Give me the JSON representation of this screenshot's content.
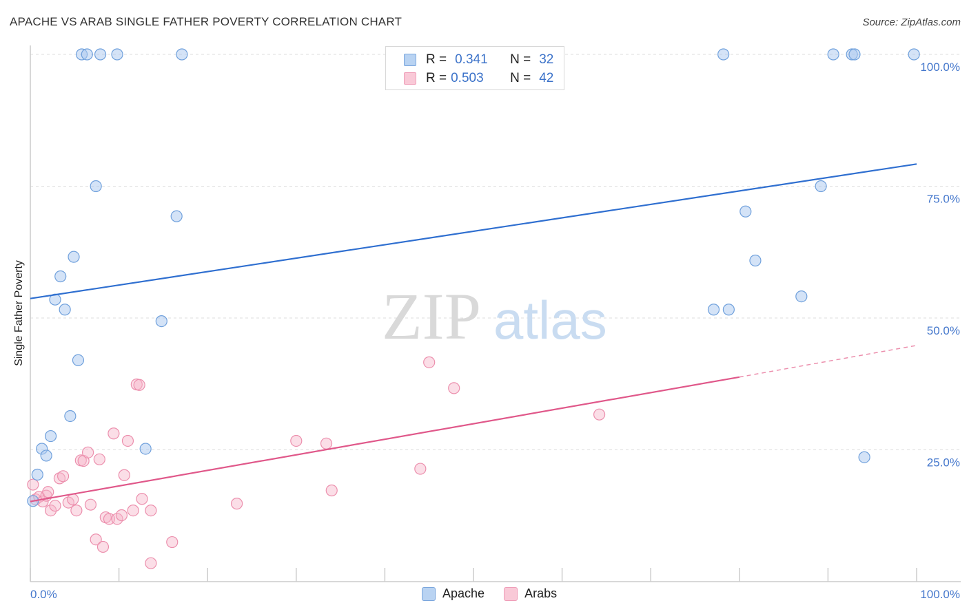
{
  "header": {
    "title": "APACHE VS ARAB SINGLE FATHER POVERTY CORRELATION CHART",
    "source": "Source: ZipAtlas.com"
  },
  "watermark": {
    "zip": "ZIP",
    "atlas": "atlas"
  },
  "legend": {
    "apache": {
      "r_label": "R =",
      "r_value": "0.341",
      "n_label": "N =",
      "n_value": "32"
    },
    "arabs": {
      "r_label": "R =",
      "r_value": "0.503",
      "n_label": "N =",
      "n_value": "42"
    }
  },
  "bottom_legend": {
    "apache": "Apache",
    "arabs": "Arabs"
  },
  "colors": {
    "apache_fill": "#a9c8ef",
    "apache_stroke": "#6fa0dc",
    "apache_line": "#2f6fd0",
    "arabs_fill": "#f6b6c9",
    "arabs_stroke": "#ec8fad",
    "arabs_line": "#e0588a",
    "grid": "#dddddd",
    "axis_text": "#4477cc"
  },
  "chart_data": {
    "type": "scatter",
    "title": "APACHE VS ARAB SINGLE FATHER POVERTY CORRELATION CHART",
    "xlabel": "",
    "ylabel": "Single Father Poverty",
    "xlim": [
      0,
      100
    ],
    "ylim": [
      0,
      100
    ],
    "x_tick_labels": [
      "0.0%",
      "100.0%"
    ],
    "y_ticks": [
      25,
      50,
      75,
      100
    ],
    "y_tick_labels": [
      "25.0%",
      "50.0%",
      "75.0%",
      "100.0%"
    ],
    "series": [
      {
        "name": "Apache",
        "R": 0.341,
        "N": 32,
        "trend": {
          "x0": 0,
          "y0": 53.7,
          "x1": 100,
          "y1": 79.2
        },
        "points": [
          [
            0.3,
            15.3
          ],
          [
            0.8,
            20.3
          ],
          [
            1.3,
            25.2
          ],
          [
            1.8,
            23.9
          ],
          [
            2.3,
            27.6
          ],
          [
            2.8,
            53.5
          ],
          [
            3.4,
            57.9
          ],
          [
            3.9,
            51.6
          ],
          [
            4.5,
            31.4
          ],
          [
            4.9,
            61.6
          ],
          [
            5.4,
            42.0
          ],
          [
            5.8,
            100
          ],
          [
            6.4,
            100
          ],
          [
            7.4,
            75.0
          ],
          [
            7.9,
            100
          ],
          [
            9.8,
            100
          ],
          [
            13.0,
            25.2
          ],
          [
            14.8,
            49.4
          ],
          [
            16.5,
            69.3
          ],
          [
            17.1,
            100
          ],
          [
            77.1,
            51.6
          ],
          [
            78.2,
            100
          ],
          [
            78.8,
            51.6
          ],
          [
            80.7,
            70.2
          ],
          [
            81.8,
            60.9
          ],
          [
            87.0,
            54.1
          ],
          [
            89.2,
            75.0
          ],
          [
            90.6,
            100
          ],
          [
            92.7,
            100
          ],
          [
            93.0,
            100
          ],
          [
            94.1,
            23.6
          ],
          [
            99.7,
            100
          ]
        ]
      },
      {
        "name": "Arabs",
        "R": 0.503,
        "N": 42,
        "trend": {
          "x0": 0,
          "y0": 15.2,
          "x1": 80,
          "y1": 38.8,
          "dashed_to_x": 100,
          "dashed_to_y": 44.8
        },
        "points": [
          [
            0.3,
            18.4
          ],
          [
            0.6,
            15.6
          ],
          [
            1.0,
            16.1
          ],
          [
            1.4,
            15.2
          ],
          [
            1.8,
            16.3
          ],
          [
            2.0,
            17.0
          ],
          [
            2.3,
            13.5
          ],
          [
            2.8,
            14.4
          ],
          [
            3.3,
            19.6
          ],
          [
            3.7,
            20.0
          ],
          [
            4.3,
            15.0
          ],
          [
            4.8,
            15.6
          ],
          [
            5.2,
            13.5
          ],
          [
            5.7,
            23.0
          ],
          [
            6.0,
            22.9
          ],
          [
            6.5,
            24.5
          ],
          [
            6.8,
            14.6
          ],
          [
            7.4,
            8.0
          ],
          [
            7.8,
            23.2
          ],
          [
            8.2,
            6.6
          ],
          [
            8.5,
            12.2
          ],
          [
            8.9,
            11.9
          ],
          [
            9.4,
            28.1
          ],
          [
            9.8,
            11.9
          ],
          [
            10.3,
            12.6
          ],
          [
            10.6,
            20.2
          ],
          [
            11.0,
            26.7
          ],
          [
            11.6,
            13.5
          ],
          [
            12.0,
            37.4
          ],
          [
            12.3,
            37.3
          ],
          [
            12.6,
            15.7
          ],
          [
            13.6,
            13.5
          ],
          [
            13.6,
            3.5
          ],
          [
            16.0,
            7.5
          ],
          [
            23.3,
            14.8
          ],
          [
            30.0,
            26.7
          ],
          [
            33.4,
            26.2
          ],
          [
            34.0,
            17.3
          ],
          [
            44.0,
            21.4
          ],
          [
            45.0,
            41.6
          ],
          [
            47.8,
            36.7
          ],
          [
            64.2,
            31.7
          ]
        ]
      }
    ]
  }
}
